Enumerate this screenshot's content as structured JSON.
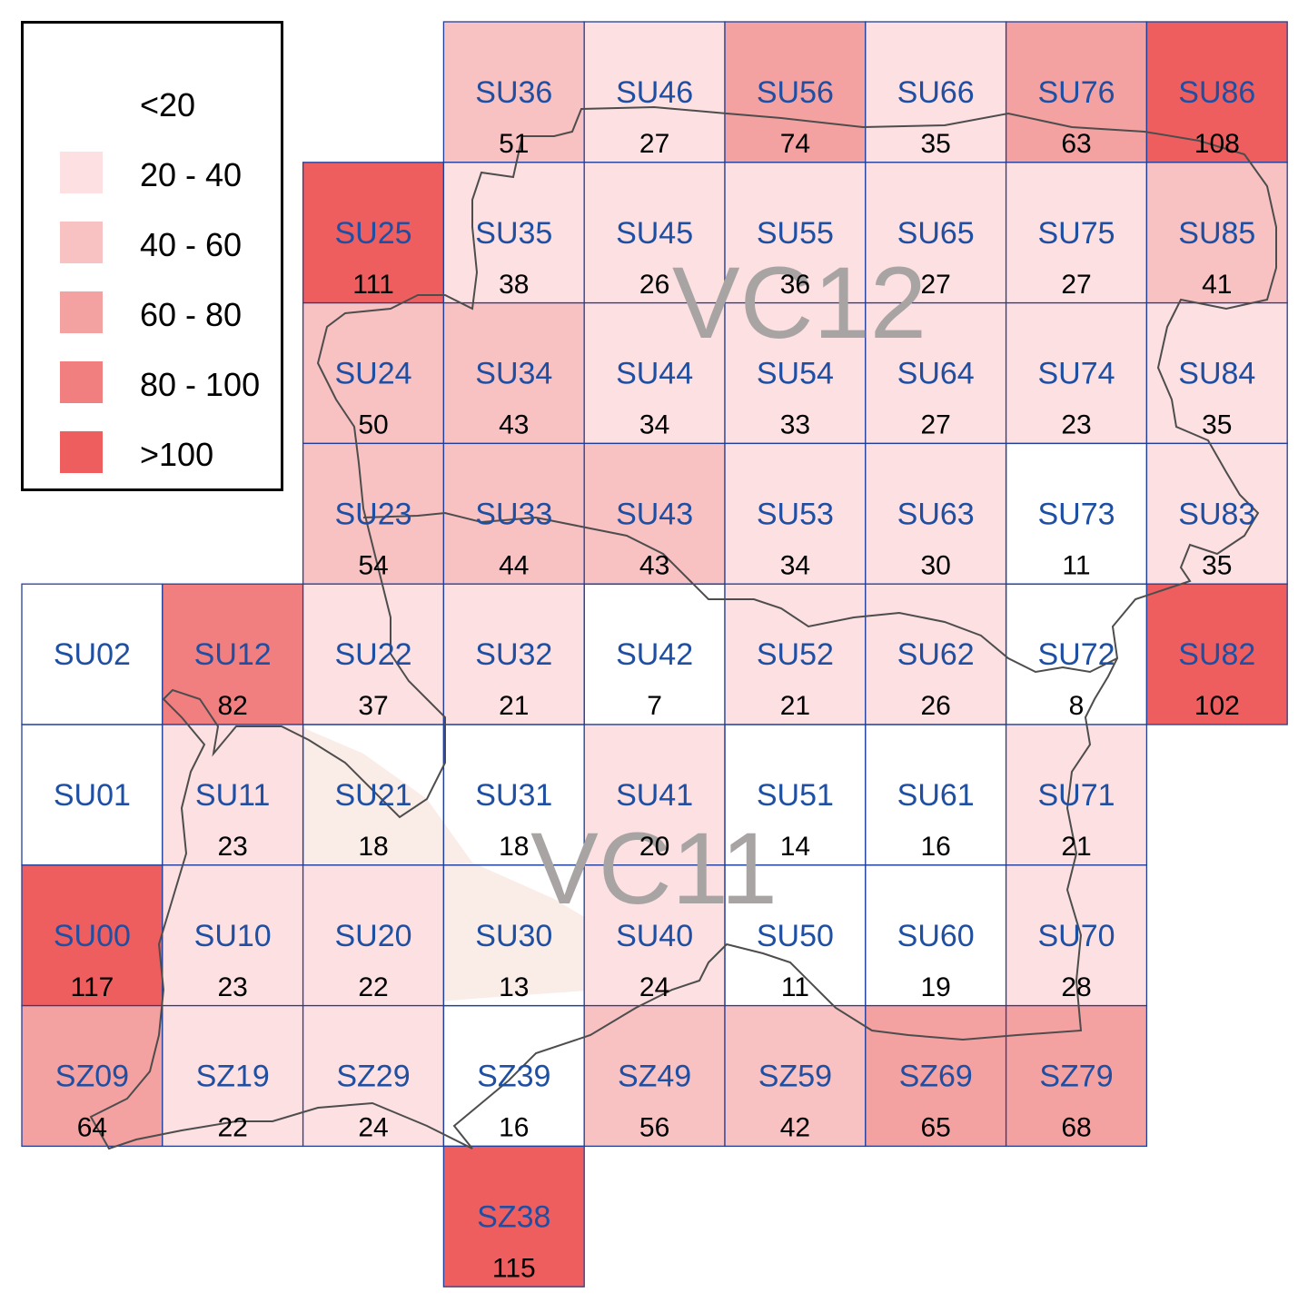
{
  "legend": {
    "items": [
      {
        "label": "<20",
        "color": "#ffffff"
      },
      {
        "label": "20 - 40",
        "color": "#fde0e1"
      },
      {
        "label": "40 - 60",
        "color": "#f8c1c2"
      },
      {
        "label": "60 - 80",
        "color": "#f4a1a1"
      },
      {
        "label": "80 - 100",
        "color": "#f27f80"
      },
      {
        "label": ">100",
        "color": "#ef5e5f"
      }
    ]
  },
  "region_labels": [
    "VC12",
    "VC11"
  ],
  "colors": {
    "grid_stroke": "#1f3f9b",
    "square_label": "#1f4fa3",
    "count_text": "#000000",
    "boundary": "#4d4d4d",
    "region_label": "#a8a4a4",
    "land_fill": "#f5ddd3"
  },
  "squares": [
    {
      "code": "SU36",
      "count": "51",
      "bin": 2
    },
    {
      "code": "SU46",
      "count": "27",
      "bin": 1
    },
    {
      "code": "SU56",
      "count": "74",
      "bin": 3
    },
    {
      "code": "SU66",
      "count": "35",
      "bin": 1
    },
    {
      "code": "SU76",
      "count": "63",
      "bin": 3
    },
    {
      "code": "SU86",
      "count": "108",
      "bin": 5
    },
    {
      "code": "SU25",
      "count": "111",
      "bin": 5
    },
    {
      "code": "SU35",
      "count": "38",
      "bin": 1
    },
    {
      "code": "SU45",
      "count": "26",
      "bin": 1
    },
    {
      "code": "SU55",
      "count": "36",
      "bin": 1
    },
    {
      "code": "SU65",
      "count": "27",
      "bin": 1
    },
    {
      "code": "SU75",
      "count": "27",
      "bin": 1
    },
    {
      "code": "SU85",
      "count": "41",
      "bin": 2
    },
    {
      "code": "SU24",
      "count": "50",
      "bin": 2
    },
    {
      "code": "SU34",
      "count": "43",
      "bin": 2
    },
    {
      "code": "SU44",
      "count": "34",
      "bin": 1
    },
    {
      "code": "SU54",
      "count": "33",
      "bin": 1
    },
    {
      "code": "SU64",
      "count": "27",
      "bin": 1
    },
    {
      "code": "SU74",
      "count": "23",
      "bin": 1
    },
    {
      "code": "SU84",
      "count": "35",
      "bin": 1
    },
    {
      "code": "SU23",
      "count": "54",
      "bin": 2
    },
    {
      "code": "SU33",
      "count": "44",
      "bin": 2
    },
    {
      "code": "SU43",
      "count": "43",
      "bin": 2
    },
    {
      "code": "SU53",
      "count": "34",
      "bin": 1
    },
    {
      "code": "SU63",
      "count": "30",
      "bin": 1
    },
    {
      "code": "SU73",
      "count": "11",
      "bin": 0
    },
    {
      "code": "SU83",
      "count": "35",
      "bin": 1
    },
    {
      "code": "SU02",
      "count": "",
      "bin": 0
    },
    {
      "code": "SU12",
      "count": "82",
      "bin": 4
    },
    {
      "code": "SU22",
      "count": "37",
      "bin": 1
    },
    {
      "code": "SU32",
      "count": "21",
      "bin": 1
    },
    {
      "code": "SU42",
      "count": "7",
      "bin": 0
    },
    {
      "code": "SU52",
      "count": "21",
      "bin": 1
    },
    {
      "code": "SU62",
      "count": "26",
      "bin": 1
    },
    {
      "code": "SU72",
      "count": "8",
      "bin": 0
    },
    {
      "code": "SU82",
      "count": "102",
      "bin": 5
    },
    {
      "code": "SU01",
      "count": "",
      "bin": 0
    },
    {
      "code": "SU11",
      "count": "23",
      "bin": 1
    },
    {
      "code": "SU21",
      "count": "18",
      "bin": 0
    },
    {
      "code": "SU31",
      "count": "18",
      "bin": 0
    },
    {
      "code": "SU41",
      "count": "20",
      "bin": 1
    },
    {
      "code": "SU51",
      "count": "14",
      "bin": 0
    },
    {
      "code": "SU61",
      "count": "16",
      "bin": 0
    },
    {
      "code": "SU71",
      "count": "21",
      "bin": 1
    },
    {
      "code": "SU00",
      "count": "117",
      "bin": 5
    },
    {
      "code": "SU10",
      "count": "23",
      "bin": 1
    },
    {
      "code": "SU20",
      "count": "22",
      "bin": 1
    },
    {
      "code": "SU30",
      "count": "13",
      "bin": 0
    },
    {
      "code": "SU40",
      "count": "24",
      "bin": 1
    },
    {
      "code": "SU50",
      "count": "11",
      "bin": 0
    },
    {
      "code": "SU60",
      "count": "19",
      "bin": 0
    },
    {
      "code": "SU70",
      "count": "28",
      "bin": 1
    },
    {
      "code": "SZ09",
      "count": "64",
      "bin": 3
    },
    {
      "code": "SZ19",
      "count": "22",
      "bin": 1
    },
    {
      "code": "SZ29",
      "count": "24",
      "bin": 1
    },
    {
      "code": "SZ39",
      "count": "16",
      "bin": 0
    },
    {
      "code": "SZ49",
      "count": "56",
      "bin": 2
    },
    {
      "code": "SZ59",
      "count": "42",
      "bin": 2
    },
    {
      "code": "SZ69",
      "count": "65",
      "bin": 3
    },
    {
      "code": "SZ79",
      "count": "68",
      "bin": 3
    },
    {
      "code": "SZ38",
      "count": "115",
      "bin": 5
    }
  ]
}
